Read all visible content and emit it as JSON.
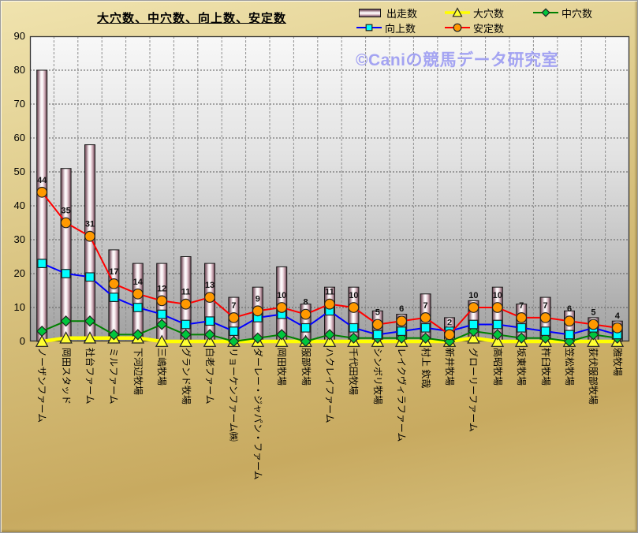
{
  "title": "大穴数、中穴数、向上数、安定数",
  "watermark": "©Caniの競馬データ研究室",
  "colors": {
    "canvas_background": "#d5bd7b",
    "plot_gradient_top": "#f8f8f8",
    "plot_gradient_bottom": "#a0a0a0",
    "plot_border": "#333333",
    "hgrid": "#5a5a5a",
    "vgrid": "#8f8f8f",
    "bar_border": "#161616",
    "bar_edge": "#6d4a58",
    "bar_center": "#ffffff",
    "data_label": "#111111",
    "axis_text": "#000000",
    "watermark_text": "#9b9bf2"
  },
  "chart_data": {
    "type": "bar+line combo",
    "title": "大穴数、中穴数、向上数、安定数",
    "xlabel": "",
    "ylabel": "",
    "ylim": [
      0,
      90
    ],
    "ytick_step": 10,
    "grid": true,
    "legend_position": "top-right",
    "categories": [
      "ノーザンファーム",
      "岡田スタッド",
      "社台ファーム",
      "ミルファーム",
      "下河辺牧場",
      "三嶋牧場",
      "グランド牧場",
      "白老ファーム",
      "リョーケンファーム㈱",
      "ダーレー・ジャパン・ファーム",
      "岡田牧場",
      "服部牧場",
      "ハクレイファーム",
      "千代田牧場",
      "シンボリ牧場",
      "レイクヴィラファーム",
      "村上 欽哉",
      "新井牧場",
      "グローリーファーム",
      "高昭牧場",
      "坂東牧場",
      "杵臼牧場",
      "笠松牧場",
      "荻伏服部牧場",
      "雅牧場"
    ],
    "series": [
      {
        "name": "出走数",
        "type": "bar",
        "color": "#c9a2ae",
        "values": [
          80,
          51,
          58,
          27,
          23,
          23,
          25,
          23,
          13,
          16,
          22,
          11,
          16,
          16,
          9,
          8,
          14,
          7,
          12,
          16,
          11,
          13,
          9,
          7,
          6
        ]
      },
      {
        "name": "大穴数",
        "type": "line",
        "marker": "triangle",
        "color": "#ffff00",
        "marker_fill": "#ffff33",
        "line_width": 4.5,
        "values": [
          0,
          1,
          1,
          1,
          1,
          0,
          0,
          0,
          0,
          0,
          0,
          0,
          0,
          0,
          0,
          0,
          0,
          0,
          1,
          0,
          0,
          0,
          0,
          0,
          0
        ]
      },
      {
        "name": "中穴数",
        "type": "line",
        "marker": "diamond",
        "color": "#008000",
        "marker_fill": "#00c63c",
        "line_width": 2,
        "values": [
          3,
          6,
          6,
          2,
          2,
          5,
          2,
          2,
          0,
          1,
          2,
          0,
          2,
          1,
          1,
          1,
          1,
          0,
          3,
          2,
          1,
          1,
          0,
          2,
          1
        ]
      },
      {
        "name": "向上数",
        "type": "line",
        "marker": "square",
        "color": "#0000ff",
        "marker_fill": "#00ffff",
        "line_width": 2,
        "values": [
          23,
          20,
          19,
          13,
          10,
          8,
          5,
          6,
          3,
          7,
          8,
          4,
          9,
          4,
          2,
          3,
          4,
          3,
          5,
          5,
          4,
          3,
          2,
          4,
          2
        ]
      },
      {
        "name": "安定数",
        "type": "line",
        "marker": "circle",
        "color": "#ff0000",
        "marker_fill": "#ff9900",
        "line_width": 2,
        "data_labels": true,
        "values": [
          44,
          35,
          31,
          17,
          14,
          12,
          11,
          13,
          7,
          9,
          10,
          8,
          11,
          10,
          5,
          6,
          7,
          2,
          10,
          10,
          7,
          7,
          6,
          5,
          4
        ]
      }
    ]
  }
}
